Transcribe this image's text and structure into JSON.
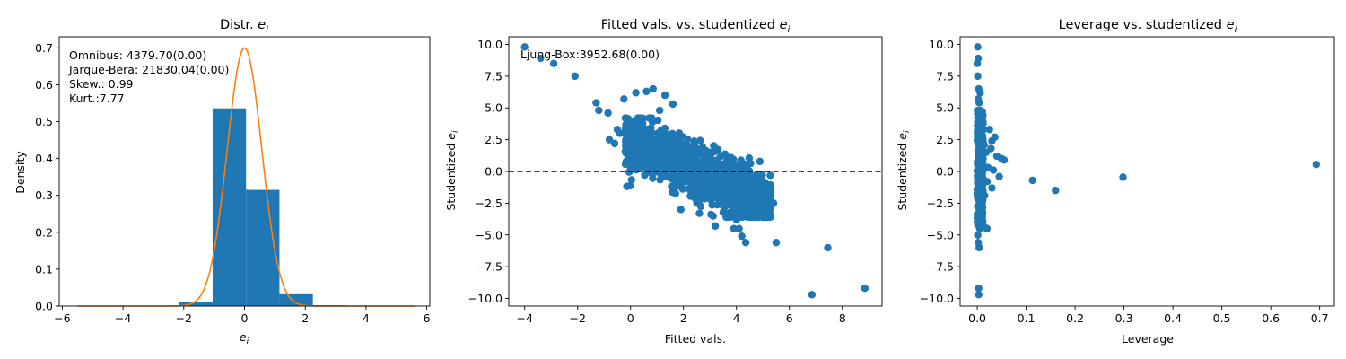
{
  "colors": {
    "bars": "#1f77b4",
    "curve": "#ff7f0e",
    "points": "#1f77b4",
    "axis": "#000000",
    "background": "#ffffff"
  },
  "chart_data": [
    {
      "type": "bar",
      "title_main": "Distr. ",
      "title_sym": "e",
      "title_sub": "i",
      "xlabel_sym": "e",
      "xlabel_sub": "i",
      "ylabel": "Density",
      "xlim": [
        -6.1,
        6.1
      ],
      "ylim": [
        0,
        0.73
      ],
      "xticks": [
        -6,
        -4,
        -2,
        0,
        2,
        4,
        6
      ],
      "yticks": [
        0.0,
        0.1,
        0.2,
        0.3,
        0.4,
        0.5,
        0.6,
        0.7
      ],
      "ytick_labels": [
        "0.0",
        "0.1",
        "0.2",
        "0.3",
        "0.4",
        "0.5",
        "0.6",
        "0.7"
      ],
      "bins": [
        {
          "x0": -2.15,
          "x1": -1.05,
          "value": 0.012
        },
        {
          "x0": -1.05,
          "x1": 0.05,
          "value": 0.536
        },
        {
          "x0": 0.05,
          "x1": 1.15,
          "value": 0.315
        },
        {
          "x0": 1.15,
          "x1": 2.25,
          "value": 0.032
        },
        {
          "x0": 2.25,
          "x1": 3.35,
          "value": 0.002
        }
      ],
      "curve": {
        "type": "normal density",
        "mean": 0.0,
        "sd": 0.57,
        "x_range": [
          -5.5,
          5.6
        ]
      },
      "annotations": [
        "Omnibus: 4379.70(0.00)",
        "Jarque-Bera: 21830.04(0.00)",
        "Skew.: 0.99",
        "Kurt.:7.77"
      ]
    },
    {
      "type": "scatter",
      "title_main": "Fitted vals. vs. studentized ",
      "title_sym": "e",
      "title_sub": "i",
      "xlabel": "Fitted vals.",
      "ylabel_main": "Studentized ",
      "ylabel_sym": "e",
      "ylabel_sub": "i",
      "xlim": [
        -4.6,
        9.5
      ],
      "ylim": [
        -10.6,
        10.6
      ],
      "xticks": [
        -4,
        -2,
        0,
        2,
        4,
        6,
        8
      ],
      "yticks": [
        -10.0,
        -7.5,
        -5.0,
        -2.5,
        0.0,
        2.5,
        5.0,
        7.5,
        10.0
      ],
      "ytick_labels": [
        "−10.0",
        "−7.5",
        "−5.0",
        "−2.5",
        "0.0",
        "2.5",
        "5.0",
        "7.5",
        "10.0"
      ],
      "reference_line": {
        "y": 0,
        "style": "dashed"
      },
      "annotation": "Ljung-Box:3952.68(0.00)",
      "dense_cloud": {
        "x_range": [
          -0.2,
          5.3
        ],
        "center": 2.5,
        "slope": -0.9,
        "spread": 1.2,
        "n": 1500
      },
      "points": [
        [
          -4.0,
          9.8
        ],
        [
          -3.4,
          8.9
        ],
        [
          -2.9,
          8.5
        ],
        [
          -2.1,
          7.5
        ],
        [
          -1.3,
          5.4
        ],
        [
          -1.2,
          4.8
        ],
        [
          -0.85,
          4.6
        ],
        [
          -0.8,
          2.5
        ],
        [
          -0.5,
          3.3
        ],
        [
          -0.25,
          5.7
        ],
        [
          0.0,
          3.7
        ],
        [
          0.2,
          6.2
        ],
        [
          0.6,
          6.3
        ],
        [
          0.85,
          6.5
        ],
        [
          1.3,
          6.0
        ],
        [
          -0.6,
          2.2
        ],
        [
          -0.4,
          3.0
        ],
        [
          0.3,
          3.2
        ],
        [
          0.4,
          4.0
        ],
        [
          0.7,
          4.2
        ],
        [
          1.1,
          4.8
        ],
        [
          1.6,
          5.3
        ],
        [
          -0.2,
          1.6
        ],
        [
          4.0,
          -3.8
        ],
        [
          4.1,
          -4.5
        ],
        [
          4.2,
          -5.1
        ],
        [
          4.35,
          -5.6
        ],
        [
          4.8,
          -3.3
        ],
        [
          4.6,
          -2.7
        ],
        [
          5.3,
          -1.6
        ],
        [
          5.4,
          -2.5
        ],
        [
          5.5,
          -5.6
        ],
        [
          3.9,
          -4.5
        ],
        [
          3.2,
          -4.3
        ],
        [
          2.6,
          -3.3
        ],
        [
          1.9,
          -3.0
        ],
        [
          7.45,
          -6.0
        ],
        [
          6.85,
          -9.7
        ],
        [
          8.85,
          -9.2
        ],
        [
          5.0,
          -1.2
        ],
        [
          3.5,
          -3.2
        ],
        [
          4.4,
          -3.1
        ]
      ]
    },
    {
      "type": "scatter",
      "title_main": "Leverage vs. studentized ",
      "title_sym": "e",
      "title_sub": "i",
      "xlabel": "Leverage",
      "ylabel_main": "Studentized ",
      "ylabel_sym": "e",
      "ylabel_sub": "i",
      "xlim": [
        -0.035,
        0.73
      ],
      "ylim": [
        -10.6,
        10.6
      ],
      "xticks": [
        0.0,
        0.1,
        0.2,
        0.3,
        0.4,
        0.5,
        0.6,
        0.7
      ],
      "xtick_labels": [
        "0.0",
        "0.1",
        "0.2",
        "0.3",
        "0.4",
        "0.5",
        "0.6",
        "0.7"
      ],
      "yticks": [
        -10.0,
        -7.5,
        -5.0,
        -2.5,
        0.0,
        2.5,
        5.0,
        7.5,
        10.0
      ],
      "ytick_labels": [
        "−10.0",
        "−7.5",
        "−5.0",
        "−2.5",
        "0.0",
        "2.5",
        "5.0",
        "7.5",
        "10.0"
      ],
      "dense_column": {
        "x_range": [
          0.0,
          0.012
        ],
        "y_range": [
          -4.0,
          4.8
        ],
        "n": 250
      },
      "points": [
        [
          0.001,
          9.8
        ],
        [
          0.002,
          8.9
        ],
        [
          0.0,
          8.5
        ],
        [
          0.001,
          7.5
        ],
        [
          0.003,
          6.5
        ],
        [
          0.006,
          6.2
        ],
        [
          0.002,
          5.7
        ],
        [
          0.004,
          5.4
        ],
        [
          0.001,
          -5.0
        ],
        [
          0.002,
          -5.6
        ],
        [
          0.004,
          -6.0
        ],
        [
          0.003,
          -9.2
        ],
        [
          0.003,
          -9.7
        ],
        [
          0.001,
          -4.2
        ],
        [
          0.005,
          -4.5
        ],
        [
          0.02,
          -4.5
        ],
        [
          0.015,
          -4.4
        ],
        [
          0.025,
          3.3
        ],
        [
          0.03,
          2.4
        ],
        [
          0.036,
          2.7
        ],
        [
          0.028,
          1.8
        ],
        [
          0.04,
          1.2
        ],
        [
          0.05,
          1.0
        ],
        [
          0.055,
          0.9
        ],
        [
          0.033,
          0.1
        ],
        [
          0.045,
          -0.4
        ],
        [
          0.03,
          -1.3
        ],
        [
          0.02,
          -0.8
        ],
        [
          0.015,
          -1.9
        ],
        [
          0.012,
          -0.6
        ],
        [
          0.018,
          1.5
        ],
        [
          0.022,
          0.3
        ],
        [
          0.014,
          2.1
        ],
        [
          0.011,
          -2.8
        ],
        [
          0.008,
          -3.2
        ],
        [
          0.113,
          -0.7
        ],
        [
          0.16,
          -1.5
        ],
        [
          0.298,
          -0.45
        ],
        [
          0.693,
          0.55
        ]
      ]
    }
  ]
}
